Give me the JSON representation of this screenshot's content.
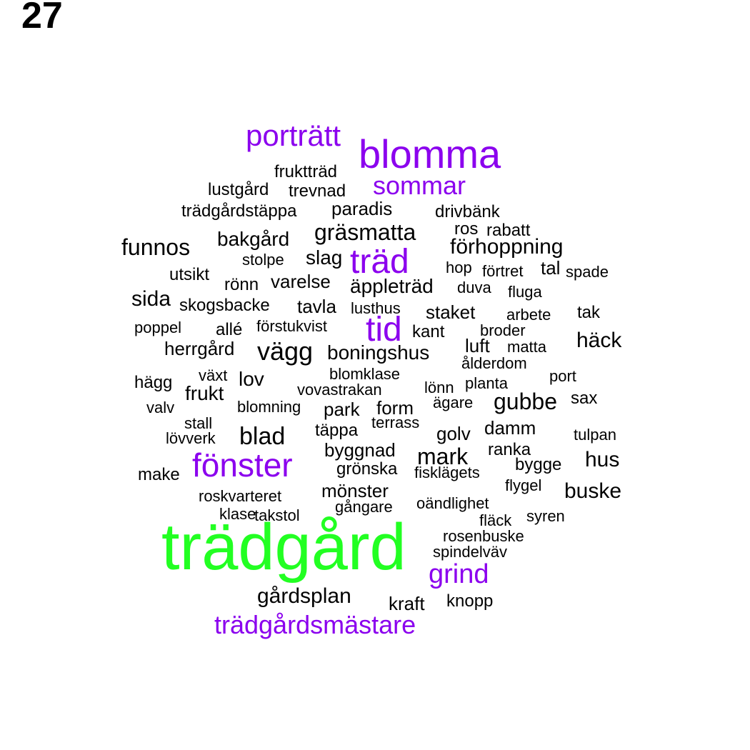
{
  "page_number": "27",
  "colors": {
    "primary": "#22ff22",
    "highlight": "#8b00ee",
    "regular": "#000000"
  },
  "words": [
    {
      "text": "trädgård",
      "tier": "primary"
    },
    {
      "text": "porträtt",
      "tier": "highlight"
    },
    {
      "text": "blomma",
      "tier": "highlight"
    },
    {
      "text": "sommar",
      "tier": "highlight"
    },
    {
      "text": "träd",
      "tier": "highlight"
    },
    {
      "text": "tid",
      "tier": "highlight"
    },
    {
      "text": "fönster",
      "tier": "highlight"
    },
    {
      "text": "grind",
      "tier": "highlight"
    },
    {
      "text": "trädgårdsmästare",
      "tier": "highlight"
    },
    {
      "text": "fruktträd",
      "tier": "regular"
    },
    {
      "text": "lustgård",
      "tier": "regular"
    },
    {
      "text": "trevnad",
      "tier": "regular"
    },
    {
      "text": "trädgårdstäppa",
      "tier": "regular"
    },
    {
      "text": "paradis",
      "tier": "regular"
    },
    {
      "text": "drivbänk",
      "tier": "regular"
    },
    {
      "text": "gräsmatta",
      "tier": "regular"
    },
    {
      "text": "ros",
      "tier": "regular"
    },
    {
      "text": "rabatt",
      "tier": "regular"
    },
    {
      "text": "funnos",
      "tier": "regular"
    },
    {
      "text": "bakgård",
      "tier": "regular"
    },
    {
      "text": "förhoppning",
      "tier": "regular"
    },
    {
      "text": "stolpe",
      "tier": "regular"
    },
    {
      "text": "slag",
      "tier": "regular"
    },
    {
      "text": "hop",
      "tier": "regular"
    },
    {
      "text": "förtret",
      "tier": "regular"
    },
    {
      "text": "tal",
      "tier": "regular"
    },
    {
      "text": "spade",
      "tier": "regular"
    },
    {
      "text": "utsikt",
      "tier": "regular"
    },
    {
      "text": "rönn",
      "tier": "regular"
    },
    {
      "text": "varelse",
      "tier": "regular"
    },
    {
      "text": "äppleträd",
      "tier": "regular"
    },
    {
      "text": "duva",
      "tier": "regular"
    },
    {
      "text": "fluga",
      "tier": "regular"
    },
    {
      "text": "sida",
      "tier": "regular"
    },
    {
      "text": "skogsbacke",
      "tier": "regular"
    },
    {
      "text": "tavla",
      "tier": "regular"
    },
    {
      "text": "lusthus",
      "tier": "regular"
    },
    {
      "text": "staket",
      "tier": "regular"
    },
    {
      "text": "arbete",
      "tier": "regular"
    },
    {
      "text": "tak",
      "tier": "regular"
    },
    {
      "text": "poppel",
      "tier": "regular"
    },
    {
      "text": "allé",
      "tier": "regular"
    },
    {
      "text": "förstukvist",
      "tier": "regular"
    },
    {
      "text": "kant",
      "tier": "regular"
    },
    {
      "text": "broder",
      "tier": "regular"
    },
    {
      "text": "herrgård",
      "tier": "regular"
    },
    {
      "text": "vägg",
      "tier": "regular"
    },
    {
      "text": "boningshus",
      "tier": "regular"
    },
    {
      "text": "luft",
      "tier": "regular"
    },
    {
      "text": "matta",
      "tier": "regular"
    },
    {
      "text": "häck",
      "tier": "regular"
    },
    {
      "text": "ålderdom",
      "tier": "regular"
    },
    {
      "text": "växt",
      "tier": "regular"
    },
    {
      "text": "blomklase",
      "tier": "regular"
    },
    {
      "text": "port",
      "tier": "regular"
    },
    {
      "text": "hägg",
      "tier": "regular"
    },
    {
      "text": "lov",
      "tier": "regular"
    },
    {
      "text": "frukt",
      "tier": "regular"
    },
    {
      "text": "vovastrakan",
      "tier": "regular"
    },
    {
      "text": "lönn",
      "tier": "regular"
    },
    {
      "text": "planta",
      "tier": "regular"
    },
    {
      "text": "gubbe",
      "tier": "regular"
    },
    {
      "text": "sax",
      "tier": "regular"
    },
    {
      "text": "valv",
      "tier": "regular"
    },
    {
      "text": "blomning",
      "tier": "regular"
    },
    {
      "text": "park",
      "tier": "regular"
    },
    {
      "text": "form",
      "tier": "regular"
    },
    {
      "text": "ägare",
      "tier": "regular"
    },
    {
      "text": "stall",
      "tier": "regular"
    },
    {
      "text": "terrass",
      "tier": "regular"
    },
    {
      "text": "täppa",
      "tier": "regular"
    },
    {
      "text": "golv",
      "tier": "regular"
    },
    {
      "text": "damm",
      "tier": "regular"
    },
    {
      "text": "tulpan",
      "tier": "regular"
    },
    {
      "text": "lövverk",
      "tier": "regular"
    },
    {
      "text": "blad",
      "tier": "regular"
    },
    {
      "text": "byggnad",
      "tier": "regular"
    },
    {
      "text": "mark",
      "tier": "regular"
    },
    {
      "text": "ranka",
      "tier": "regular"
    },
    {
      "text": "hus",
      "tier": "regular"
    },
    {
      "text": "make",
      "tier": "regular"
    },
    {
      "text": "grönska",
      "tier": "regular"
    },
    {
      "text": "fisklägets",
      "tier": "regular"
    },
    {
      "text": "bygge",
      "tier": "regular"
    },
    {
      "text": "flygel",
      "tier": "regular"
    },
    {
      "text": "mönster",
      "tier": "regular"
    },
    {
      "text": "buske",
      "tier": "regular"
    },
    {
      "text": "roskvarteret",
      "tier": "regular"
    },
    {
      "text": "oändlighet",
      "tier": "regular"
    },
    {
      "text": "klase",
      "tier": "regular"
    },
    {
      "text": "takstol",
      "tier": "regular"
    },
    {
      "text": "gångare",
      "tier": "regular"
    },
    {
      "text": "syren",
      "tier": "regular"
    },
    {
      "text": "fläck",
      "tier": "regular"
    },
    {
      "text": "rosenbuske",
      "tier": "regular"
    },
    {
      "text": "spindelväv",
      "tier": "regular"
    },
    {
      "text": "gårdsplan",
      "tier": "regular"
    },
    {
      "text": "kraft",
      "tier": "regular"
    },
    {
      "text": "knopp",
      "tier": "regular"
    }
  ]
}
